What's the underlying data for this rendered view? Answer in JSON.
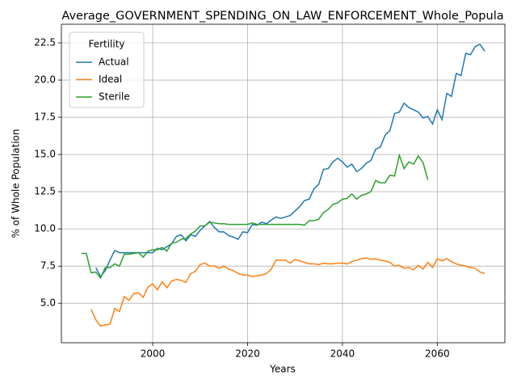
{
  "chart_data": {
    "type": "line",
    "title": "Average_GOVERNMENT_SPENDING_ON_LAW_ENFORCEMENT_Whole_Popula",
    "x_label": "Years",
    "y_label": "% of Whole Population",
    "legend_title": "Fertility",
    "legend_loc": "upper left",
    "grid": true,
    "x": [
      1985,
      1986,
      1987,
      1988,
      1989,
      1990,
      1991,
      1992,
      1993,
      1994,
      1995,
      1996,
      1997,
      1998,
      1999,
      2000,
      2001,
      2002,
      2003,
      2004,
      2005,
      2006,
      2007,
      2008,
      2009,
      2010,
      2011,
      2012,
      2013,
      2014,
      2015,
      2016,
      2017,
      2018,
      2019,
      2020,
      2021,
      2022,
      2023,
      2024,
      2025,
      2026,
      2027,
      2028,
      2029,
      2030,
      2031,
      2032,
      2033,
      2034,
      2035,
      2036,
      2037,
      2038,
      2039,
      2040,
      2041,
      2042,
      2043,
      2044,
      2045,
      2046,
      2047,
      2048,
      2049,
      2050,
      2051,
      2052,
      2053,
      2054,
      2055,
      2056,
      2057,
      2058,
      2059,
      2060,
      2061,
      2062,
      2063,
      2064,
      2065,
      2066,
      2067,
      2068,
      2069,
      2070
    ],
    "series": [
      {
        "name": "Actual",
        "color": "#1f77b4",
        "values": [
          null,
          null,
          null,
          7.4,
          6.8,
          7.2,
          7.9,
          8.55,
          8.4,
          8.4,
          8.4,
          8.4,
          8.4,
          8.4,
          8.4,
          8.4,
          8.7,
          8.6,
          8.8,
          9.0,
          9.5,
          9.6,
          9.2,
          9.6,
          9.5,
          9.9,
          10.2,
          10.5,
          10.1,
          9.8,
          9.8,
          9.55,
          9.45,
          9.3,
          9.8,
          9.75,
          10.3,
          10.25,
          10.45,
          10.35,
          10.6,
          10.8,
          10.7,
          10.8,
          10.9,
          11.2,
          11.5,
          11.9,
          12.0,
          12.7,
          13.0,
          14.0,
          14.05,
          14.5,
          14.75,
          14.5,
          14.15,
          14.35,
          13.85,
          14.05,
          14.4,
          14.6,
          15.35,
          15.5,
          16.3,
          16.6,
          17.75,
          17.85,
          18.45,
          18.15,
          18.0,
          17.85,
          17.45,
          17.55,
          17.05,
          18.0,
          17.35,
          19.1,
          18.9,
          20.45,
          20.3,
          21.8,
          21.7,
          22.25,
          22.4,
          21.95
        ]
      },
      {
        "name": "Ideal",
        "color": "#ff7f0e",
        "values": [
          null,
          null,
          4.6,
          3.9,
          3.47,
          3.55,
          3.6,
          4.65,
          4.45,
          5.45,
          5.2,
          5.65,
          5.7,
          5.4,
          6.1,
          6.3,
          5.9,
          6.45,
          6.05,
          6.5,
          6.6,
          6.55,
          6.4,
          7.0,
          7.15,
          7.6,
          7.7,
          7.5,
          7.5,
          7.35,
          7.5,
          7.3,
          7.2,
          7.0,
          6.9,
          6.9,
          6.8,
          6.85,
          6.9,
          7.0,
          7.3,
          7.9,
          7.9,
          7.9,
          7.7,
          7.95,
          7.85,
          7.75,
          7.65,
          7.65,
          7.6,
          7.7,
          7.65,
          7.65,
          7.7,
          7.7,
          7.65,
          7.8,
          7.9,
          8.0,
          8.05,
          7.95,
          8.0,
          7.9,
          7.85,
          7.75,
          7.5,
          7.55,
          7.35,
          7.4,
          7.25,
          7.55,
          7.3,
          7.75,
          7.4,
          8.0,
          7.85,
          8.0,
          7.8,
          7.65,
          7.55,
          7.5,
          7.4,
          7.35,
          7.1,
          7.0
        ]
      },
      {
        "name": "Sterile",
        "color": "#2ca02c",
        "values": [
          8.35,
          8.35,
          7.05,
          7.1,
          6.7,
          7.4,
          7.4,
          7.65,
          7.5,
          8.3,
          8.3,
          8.35,
          8.4,
          8.1,
          8.5,
          8.6,
          8.6,
          8.75,
          8.5,
          9.05,
          9.1,
          9.3,
          9.35,
          9.65,
          9.85,
          10.2,
          10.2,
          10.45,
          10.4,
          10.35,
          10.35,
          10.3,
          10.3,
          10.3,
          10.3,
          10.3,
          10.4,
          10.3,
          10.3,
          10.3,
          10.3,
          10.3,
          10.3,
          10.3,
          10.3,
          10.3,
          10.3,
          10.25,
          10.55,
          10.55,
          10.65,
          11.1,
          11.3,
          11.65,
          11.75,
          12.0,
          12.05,
          12.35,
          12.0,
          12.25,
          12.35,
          12.5,
          13.25,
          13.1,
          13.1,
          13.6,
          13.55,
          14.95,
          14.05,
          14.5,
          14.35,
          14.9,
          14.45,
          13.3,
          null,
          null,
          null,
          null,
          null,
          null,
          null,
          null,
          null,
          null,
          null,
          null
        ]
      }
    ],
    "xlim": [
      1980.75,
      2074.25
    ],
    "xticks": [
      2000,
      2020,
      2040,
      2060
    ],
    "ylim": [
      2.35,
      23.75
    ],
    "yticks": [
      {
        "value": 5,
        "label": "5.0"
      },
      7.5,
      {
        "value": 10,
        "label": "10.0"
      },
      12.5,
      {
        "value": 15,
        "label": "15.0"
      },
      17.5,
      {
        "value": 20,
        "label": "20.0"
      },
      22.5
    ]
  }
}
